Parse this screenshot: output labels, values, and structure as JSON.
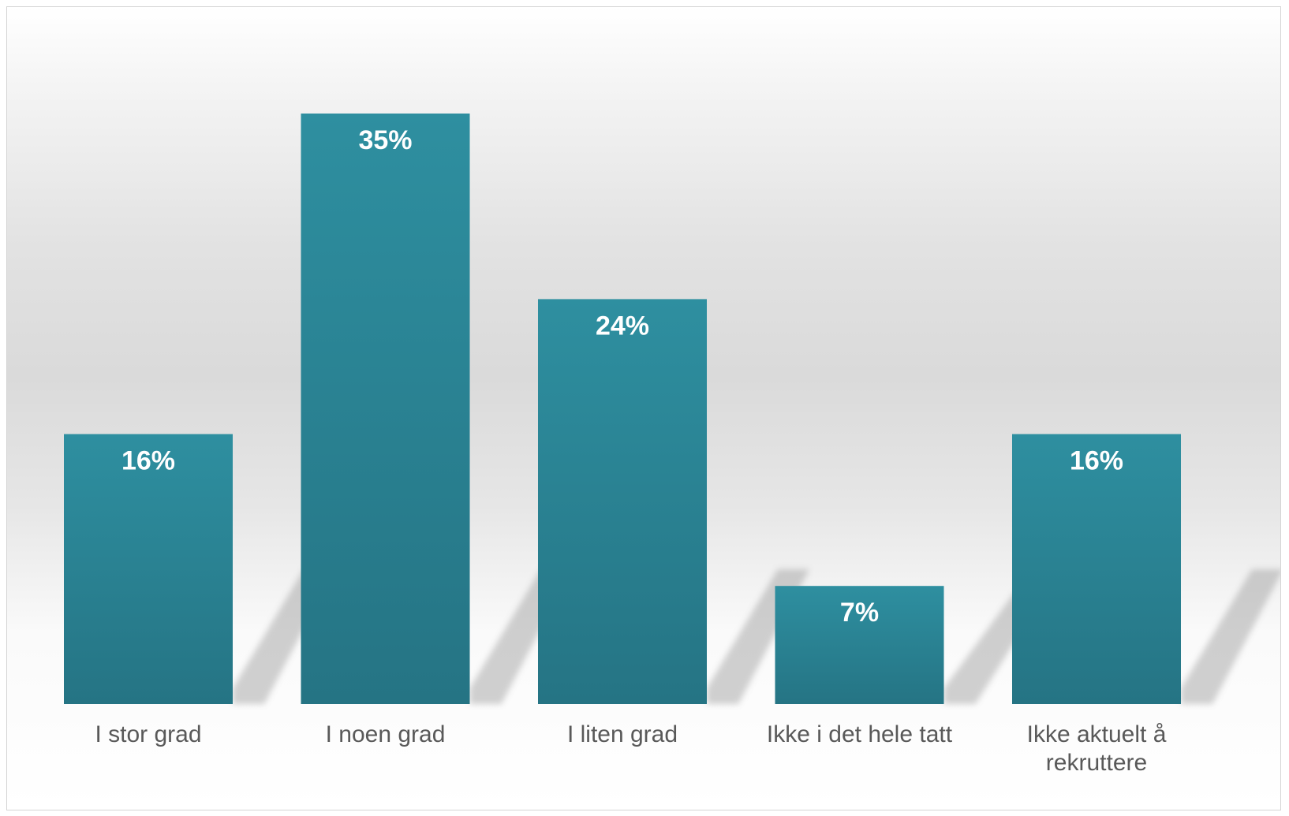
{
  "chart_data": {
    "type": "bar",
    "categories": [
      "I stor grad",
      "I noen grad",
      "I liten grad",
      "Ikke i det hele tatt",
      "Ikke aktuelt å rekruttere"
    ],
    "values": [
      16,
      35,
      24,
      7,
      16
    ],
    "value_labels": [
      "16%",
      "35%",
      "24%",
      "7%",
      "16%"
    ],
    "unit": "%",
    "ylim": [
      0,
      35
    ],
    "grid": false,
    "legend": "none",
    "title": "",
    "xlabel": "",
    "ylabel": "",
    "bar_color_top": "#2e8fa0",
    "bar_color_bottom": "#257484"
  }
}
